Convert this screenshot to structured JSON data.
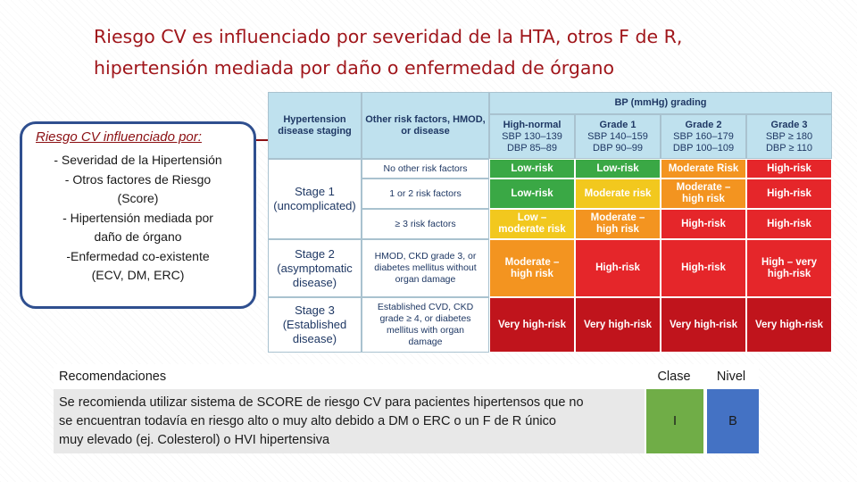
{
  "title": {
    "lines": [
      "Riesgo CV es influenciado por severidad de la HTA, otros F de R,",
      "hipertensión mediada por daño o enfermedad de órgano"
    ]
  },
  "callout": {
    "heading": "Riesgo CV influenciado por:",
    "lines": [
      "- Severidad de la Hipertensión",
      "- Otros factores de Riesgo",
      "(Score)",
      "- Hipertensión mediada por",
      "daño de órgano",
      "-Enfermedad co-existente",
      "(ECV, DM, ERC)"
    ]
  },
  "risk_table": {
    "header": {
      "staging": [
        "Hypertension",
        "disease staging"
      ],
      "factors": [
        "Other risk factors, HMOD,",
        "or disease"
      ],
      "bp_grading": "BP (mmHg) grading",
      "grades": [
        [
          "High-normal",
          "SBP 130–139",
          "DBP 85–89"
        ],
        [
          "Grade 1",
          "SBP 140–159",
          "DBP 90–99"
        ],
        [
          "Grade 2",
          "SBP 160–179",
          "DBP 100–109"
        ],
        [
          "Grade 3",
          "SBP ≥ 180",
          "DBP ≥ 110"
        ]
      ]
    },
    "stages": [
      [
        "Stage 1",
        "(uncomplicated)"
      ],
      [
        "Stage 2",
        "(asymptomatic",
        "disease)"
      ],
      [
        "Stage 3",
        "(Established",
        "disease)"
      ]
    ],
    "rows": [
      {
        "factors": [
          "No other risk factors"
        ],
        "cells": [
          [
            "Low-risk"
          ],
          [
            "Low-risk"
          ],
          [
            "Moderate Risk"
          ],
          [
            "High-risk"
          ]
        ]
      },
      {
        "factors": [
          "1 or 2 risk factors"
        ],
        "cells": [
          [
            "Low-risk"
          ],
          [
            "Moderate risk"
          ],
          [
            "Moderate –",
            "high risk"
          ],
          [
            "High-risk"
          ]
        ]
      },
      {
        "factors": [
          "≥ 3 risk factors"
        ],
        "cells": [
          [
            "Low –",
            "moderate risk"
          ],
          [
            "Moderate –",
            "high risk"
          ],
          [
            "High-risk"
          ],
          [
            "High-risk"
          ]
        ]
      },
      {
        "factors": [
          "HMOD, CKD grade 3, or",
          "diabetes mellitus without",
          "organ damage"
        ],
        "cells": [
          [
            "Moderate –",
            "high risk"
          ],
          [
            "High-risk"
          ],
          [
            "High-risk"
          ],
          [
            "High – very",
            "high-risk"
          ]
        ]
      },
      {
        "factors": [
          "Established CVD, CKD",
          "grade ≥ 4, or diabetes",
          "mellitus with organ",
          "damage"
        ],
        "cells": [
          [
            "Very high-risk"
          ],
          [
            "Very high-risk"
          ],
          [
            "Very high-risk"
          ],
          [
            "Very high-risk"
          ]
        ]
      }
    ]
  },
  "recommendations": {
    "headers": [
      "Recomendaciones",
      "Clase",
      "Nivel"
    ],
    "lines": [
      "Se recomienda utilizar sistema de SCORE de riesgo CV para pacientes hipertensos que no",
      "se encuentran todavía en riesgo alto o muy alto debido a DM o ERC o un F de R único",
      "muy elevado (ej. Colesterol) o HVI hipertensiva"
    ],
    "clase": "I",
    "nivel": "B"
  }
}
